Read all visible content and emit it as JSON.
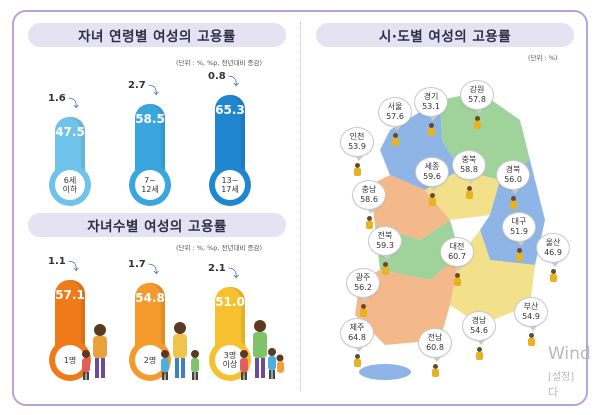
{
  "left_top": {
    "title": "자녀 연령별 여성의 고용률",
    "unit": "(단위 : %, %p, 전년대비 증감)"
  },
  "left_bottom": {
    "title": "자녀수별 여성의 고용률",
    "unit": "(단위 : %, %p, 전년대비 증감)"
  },
  "right": {
    "title": "시·도별 여성의 고용률",
    "unit": "(단위 : %)"
  },
  "watermark": {
    "line1": "Wind",
    "line2": "[설정]",
    "line3": "다"
  },
  "colors": {
    "blue_tube_1": "#6ec3ea",
    "blue_tube_2": "#3aa6e0",
    "blue_tube_3": "#1f86cf",
    "orange_1": "#f07a1a",
    "orange_2": "#f59a2c",
    "yellow_3": "#f6c02e",
    "map_green": "#9fd39a",
    "map_blue": "#8fb5e6",
    "map_yellow": "#f3e08a",
    "map_orange": "#f4b98a"
  },
  "chart_data": [
    {
      "type": "bar",
      "title": "자녀 연령별 여성의 고용률",
      "categories": [
        "6세 이하",
        "7~12세",
        "13~17세"
      ],
      "category_lines": [
        [
          "6세",
          "이하"
        ],
        [
          "7~",
          "12세"
        ],
        [
          "13~",
          "17세"
        ]
      ],
      "values": [
        47.5,
        58.5,
        65.3
      ],
      "value_labels": [
        "47.5",
        "58.5",
        "65.3"
      ],
      "changes": [
        1.6,
        2.7,
        0.8
      ],
      "change_labels": [
        "1.6",
        "2.7",
        "0.8"
      ],
      "ylim": [
        0,
        70
      ]
    },
    {
      "type": "bar",
      "title": "자녀수별 여성의 고용률",
      "categories": [
        "1명",
        "2명",
        "3명 이상"
      ],
      "category_lines": [
        [
          "1명"
        ],
        [
          "2명"
        ],
        [
          "3명",
          "이상"
        ]
      ],
      "values": [
        57.1,
        54.8,
        51.0
      ],
      "value_labels": [
        "57.1",
        "54.8",
        "51.0"
      ],
      "changes": [
        1.1,
        1.7,
        2.1
      ],
      "change_labels": [
        "1.1",
        "1.7",
        "2.1"
      ],
      "ylim": [
        0,
        60
      ]
    },
    {
      "type": "table",
      "title": "시·도별 여성의 고용률",
      "regions": [
        {
          "name": "강원",
          "value": "57.8"
        },
        {
          "name": "경기",
          "value": "53.1"
        },
        {
          "name": "서울",
          "value": "57.6"
        },
        {
          "name": "인천",
          "value": "53.9"
        },
        {
          "name": "세종",
          "value": "59.6"
        },
        {
          "name": "충북",
          "value": "58.8"
        },
        {
          "name": "경북",
          "value": "56.0"
        },
        {
          "name": "충남",
          "value": "58.6"
        },
        {
          "name": "대구",
          "value": "51.9"
        },
        {
          "name": "전북",
          "value": "59.3"
        },
        {
          "name": "대전",
          "value": "60.7"
        },
        {
          "name": "울산",
          "value": "46.9"
        },
        {
          "name": "광주",
          "value": "56.2"
        },
        {
          "name": "부산",
          "value": "54.9"
        },
        {
          "name": "경남",
          "value": "54.6"
        },
        {
          "name": "제주",
          "value": "64.8"
        },
        {
          "name": "전남",
          "value": "60.8"
        }
      ]
    }
  ]
}
